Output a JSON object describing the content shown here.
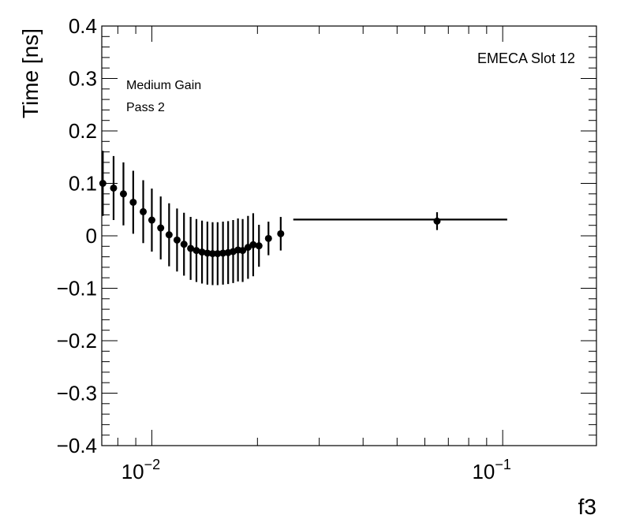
{
  "chart_data": {
    "type": "scatter",
    "title": "",
    "xlabel": "f3",
    "ylabel": "Time [ns]",
    "xscale": "log",
    "xlim": [
      0.0072,
      0.185
    ],
    "ylim": [
      -0.4,
      0.4
    ],
    "x_tick_labels": [
      {
        "value": 0.01,
        "base": "10",
        "exp": "−2"
      },
      {
        "value": 0.1,
        "base": "10",
        "exp": "−1"
      }
    ],
    "y_ticks": [
      -0.4,
      -0.3,
      -0.2,
      -0.1,
      0,
      0.1,
      0.2,
      0.3,
      0.4
    ],
    "y_tick_labels": [
      "−0.4",
      "−0.3",
      "−0.2",
      "−0.1",
      "0",
      "0.1",
      "0.2",
      "0.3",
      "0.4"
    ],
    "annotations": {
      "slot": "EMECA Slot 12",
      "gain": "Medium Gain",
      "pass": "Pass 2"
    },
    "series": [
      {
        "name": "EMECA Slot 12",
        "marker_color": "#000000",
        "points": [
          {
            "x": 0.00725,
            "y": 0.1,
            "yerr": 0.062
          },
          {
            "x": 0.00778,
            "y": 0.091,
            "yerr": 0.061
          },
          {
            "x": 0.0083,
            "y": 0.08,
            "yerr": 0.06
          },
          {
            "x": 0.00885,
            "y": 0.064,
            "yerr": 0.06
          },
          {
            "x": 0.00945,
            "y": 0.046,
            "yerr": 0.06
          },
          {
            "x": 0.01,
            "y": 0.03,
            "yerr": 0.06
          },
          {
            "x": 0.0106,
            "y": 0.015,
            "yerr": 0.06
          },
          {
            "x": 0.0112,
            "y": 0.002,
            "yerr": 0.06
          },
          {
            "x": 0.0118,
            "y": -0.008,
            "yerr": 0.06
          },
          {
            "x": 0.01235,
            "y": -0.016,
            "yerr": 0.06
          },
          {
            "x": 0.0129,
            "y": -0.024,
            "yerr": 0.06
          },
          {
            "x": 0.0134,
            "y": -0.028,
            "yerr": 0.06
          },
          {
            "x": 0.0139,
            "y": -0.031,
            "yerr": 0.06
          },
          {
            "x": 0.0144,
            "y": -0.033,
            "yerr": 0.06
          },
          {
            "x": 0.0149,
            "y": -0.034,
            "yerr": 0.06
          },
          {
            "x": 0.0154,
            "y": -0.034,
            "yerr": 0.06
          },
          {
            "x": 0.01595,
            "y": -0.033,
            "yerr": 0.06
          },
          {
            "x": 0.0165,
            "y": -0.032,
            "yerr": 0.06
          },
          {
            "x": 0.01705,
            "y": -0.03,
            "yerr": 0.06
          },
          {
            "x": 0.0176,
            "y": -0.027,
            "yerr": 0.06
          },
          {
            "x": 0.01815,
            "y": -0.028,
            "yerr": 0.06
          },
          {
            "x": 0.0188,
            "y": -0.022,
            "yerr": 0.06
          },
          {
            "x": 0.01945,
            "y": -0.017,
            "yerr": 0.06
          },
          {
            "x": 0.0202,
            "y": -0.019,
            "yerr": 0.04
          },
          {
            "x": 0.0215,
            "y": -0.005,
            "yerr": 0.032
          },
          {
            "x": 0.0233,
            "y": 0.004,
            "yerr": 0.032
          },
          {
            "x": 0.065,
            "y": 0.028,
            "yerr": 0.017,
            "xlo": 0.0253,
            "xhi": 0.103,
            "yband": 0.031
          }
        ]
      }
    ]
  }
}
